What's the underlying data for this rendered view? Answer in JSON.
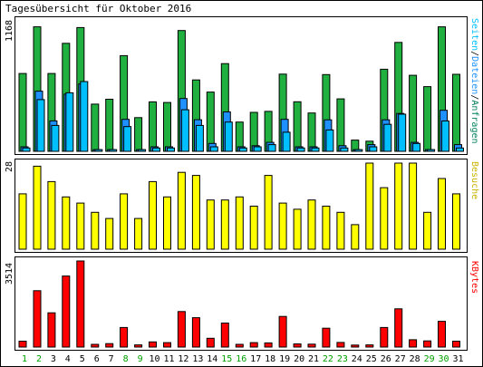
{
  "title": "Tagesübersicht für Oktober 2016",
  "colors": {
    "hits": "#00805c",
    "files": "#0000ff",
    "pages": "#00c0ff",
    "visits": "#ffff00",
    "kbytes": "#ff0000",
    "weekend_label": "#00a000",
    "weekday_label": "#000000",
    "frame": "#000000",
    "hits_fill": "#20b040",
    "files_fill": "#1e90ff",
    "pages_fill": "#00bfff"
  },
  "chart_data": [
    {
      "type": "bar",
      "panel": "requests",
      "categories": [
        "1",
        "2",
        "3",
        "4",
        "5",
        "6",
        "7",
        "8",
        "9",
        "10",
        "11",
        "12",
        "13",
        "14",
        "15",
        "16",
        "17",
        "18",
        "19",
        "20",
        "21",
        "22",
        "23",
        "24",
        "25",
        "26",
        "27",
        "28",
        "29",
        "30",
        "31"
      ],
      "ymax_label": "1168",
      "ylim": [
        0,
        1168
      ],
      "legend_text": {
        "seiten": "Seiten",
        "dateien": "Dateien",
        "anfragen": "Anfragen",
        "sep": "/"
      },
      "series": [
        {
          "name": "Anfragen",
          "values": [
            692,
            1107,
            692,
            960,
            1100,
            420,
            463,
            851,
            300,
            440,
            434,
            1074,
            635,
            527,
            780,
            260,
            346,
            355,
            686,
            441,
            341,
            682,
            466,
            100,
            90,
            730,
            968,
            676,
            575,
            1107,
            685
          ]
        },
        {
          "name": "Dateien",
          "values": [
            40,
            535,
            271,
            508,
            599,
            15,
            15,
            284,
            15,
            40,
            40,
            470,
            281,
            70,
            350,
            40,
            50,
            80,
            284,
            40,
            40,
            280,
            50,
            15,
            60,
            280,
            337,
            80,
            15,
            365,
            60
          ]
        },
        {
          "name": "Seiten",
          "values": [
            30,
            460,
            230,
            520,
            620,
            15,
            15,
            220,
            15,
            30,
            30,
            370,
            230,
            40,
            260,
            30,
            40,
            60,
            170,
            30,
            30,
            190,
            30,
            15,
            40,
            240,
            330,
            70,
            15,
            270,
            30
          ]
        }
      ]
    },
    {
      "type": "bar",
      "panel": "visits",
      "categories": [
        "1",
        "2",
        "3",
        "4",
        "5",
        "6",
        "7",
        "8",
        "9",
        "10",
        "11",
        "12",
        "13",
        "14",
        "15",
        "16",
        "17",
        "18",
        "19",
        "20",
        "21",
        "22",
        "23",
        "24",
        "25",
        "26",
        "27",
        "28",
        "29",
        "30",
        "31"
      ],
      "ymax_label": "28",
      "ylim": [
        0,
        28
      ],
      "legend_text": "Besuche",
      "series": [
        {
          "name": "Besuche",
          "values": [
            18,
            27,
            22,
            17,
            15,
            12,
            10,
            18,
            10,
            22,
            17,
            25,
            24,
            16,
            16,
            17,
            14,
            24,
            15,
            13,
            16,
            14,
            12,
            8,
            28,
            20,
            28,
            28,
            12,
            23,
            18
          ]
        }
      ]
    },
    {
      "type": "bar",
      "panel": "kbytes",
      "categories": [
        "1",
        "2",
        "3",
        "4",
        "5",
        "6",
        "7",
        "8",
        "9",
        "10",
        "11",
        "12",
        "13",
        "14",
        "15",
        "16",
        "17",
        "18",
        "19",
        "20",
        "21",
        "22",
        "23",
        "24",
        "25",
        "26",
        "27",
        "28",
        "29",
        "30",
        "31"
      ],
      "ymax_label": "3514",
      "ylim": [
        0,
        3514
      ],
      "legend_text": "KBytes",
      "series": [
        {
          "name": "KBytes",
          "values": [
            240,
            2300,
            1400,
            2900,
            3514,
            110,
            140,
            800,
            90,
            210,
            180,
            1450,
            1200,
            360,
            980,
            110,
            180,
            170,
            1250,
            130,
            120,
            770,
            190,
            80,
            90,
            800,
            1560,
            300,
            250,
            1050,
            240
          ]
        }
      ]
    }
  ],
  "weekend_days": [
    "1",
    "2",
    "8",
    "9",
    "15",
    "16",
    "22",
    "23",
    "29",
    "30"
  ]
}
